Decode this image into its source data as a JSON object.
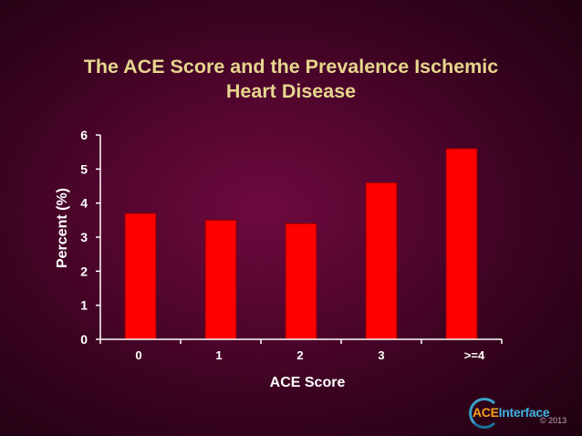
{
  "slide": {
    "title": "The ACE Score and the Prevalence Ischemic\nHeart Disease",
    "logo_text_part1": "ACE",
    "logo_text_part2": "Interface",
    "copyright": "© 2013"
  },
  "colors": {
    "background": "#4a0528",
    "title": "#e6d68e",
    "bar_fill": "#ff0000",
    "bar_stroke": "#8a0000",
    "axis": "#ffffff"
  },
  "chart_data": {
    "type": "bar",
    "title": "The ACE Score and the Prevalence Ischemic Heart Disease",
    "xlabel": "ACE Score",
    "ylabel": "Percent  (%)",
    "categories": [
      "0",
      "1",
      "2",
      "3",
      ">=4"
    ],
    "values": [
      3.7,
      3.5,
      3.4,
      4.6,
      5.6
    ],
    "ylim": [
      0,
      6
    ],
    "yticks": [
      "0",
      "1",
      "2",
      "3",
      "4",
      "5",
      "6"
    ],
    "grid": false,
    "legend": "none"
  }
}
